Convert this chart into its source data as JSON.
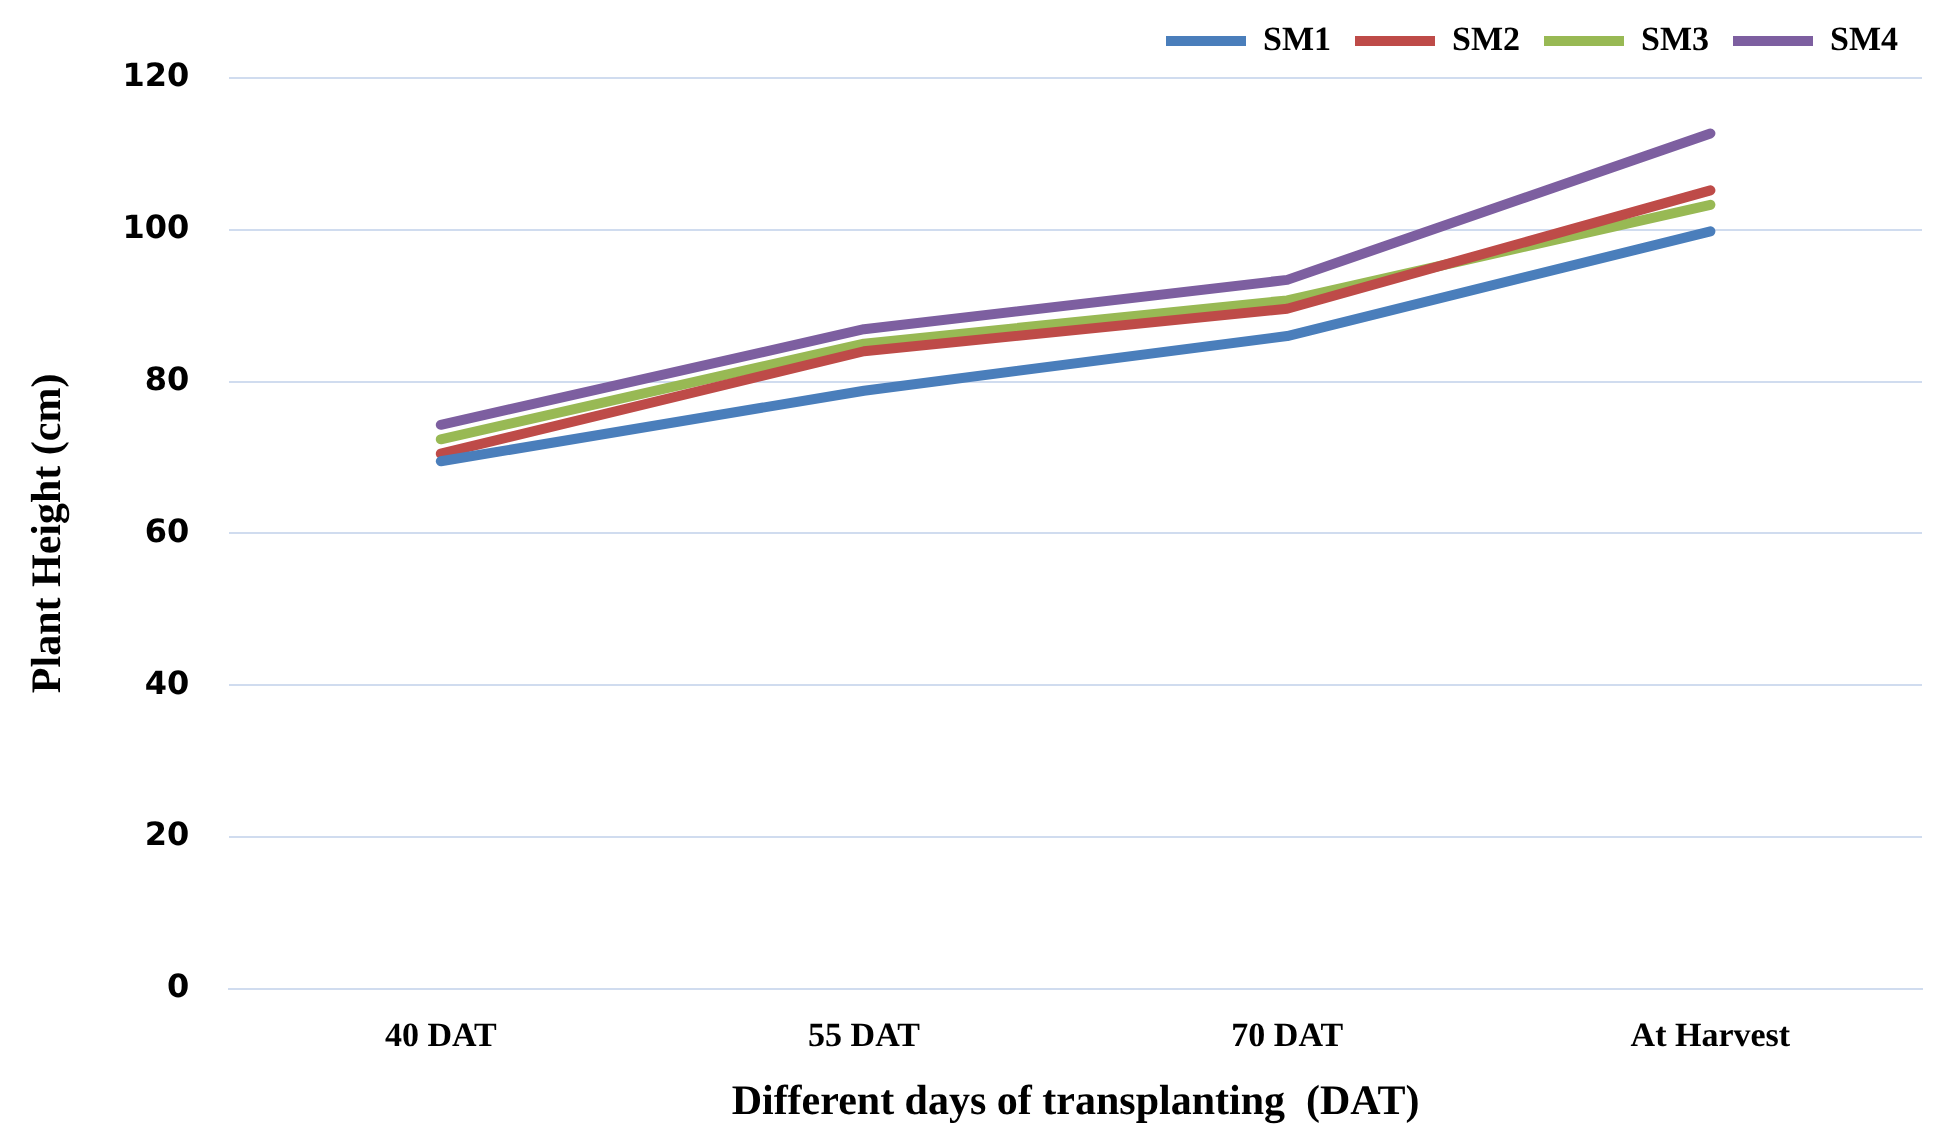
{
  "chart_data": {
    "type": "line",
    "xlabel": "Different days of transplanting  (DAT)",
    "ylabel": "Plant Height (cm)",
    "categories": [
      "40 DAT",
      "55 DAT",
      "70 DAT",
      "At Harvest"
    ],
    "series": [
      {
        "name": "SM1",
        "color": "#4a7ebb",
        "values": [
          69.5,
          78.8,
          86,
          99.8
        ]
      },
      {
        "name": "SM2",
        "color": "#be4b48",
        "values": [
          70.5,
          84,
          89.6,
          105.2
        ]
      },
      {
        "name": "SM3",
        "color": "#98b954",
        "values": [
          72.4,
          85,
          90.7,
          103.3
        ]
      },
      {
        "name": "SM4",
        "color": "#7d5fa0",
        "values": [
          74.3,
          86.9,
          93.4,
          112.7
        ]
      }
    ],
    "ylim": [
      0,
      120
    ],
    "yticks": [
      0,
      20,
      40,
      60,
      80,
      100,
      120
    ],
    "grid": "y",
    "legend": "top right",
    "marker": "none",
    "line_style": "solid"
  }
}
